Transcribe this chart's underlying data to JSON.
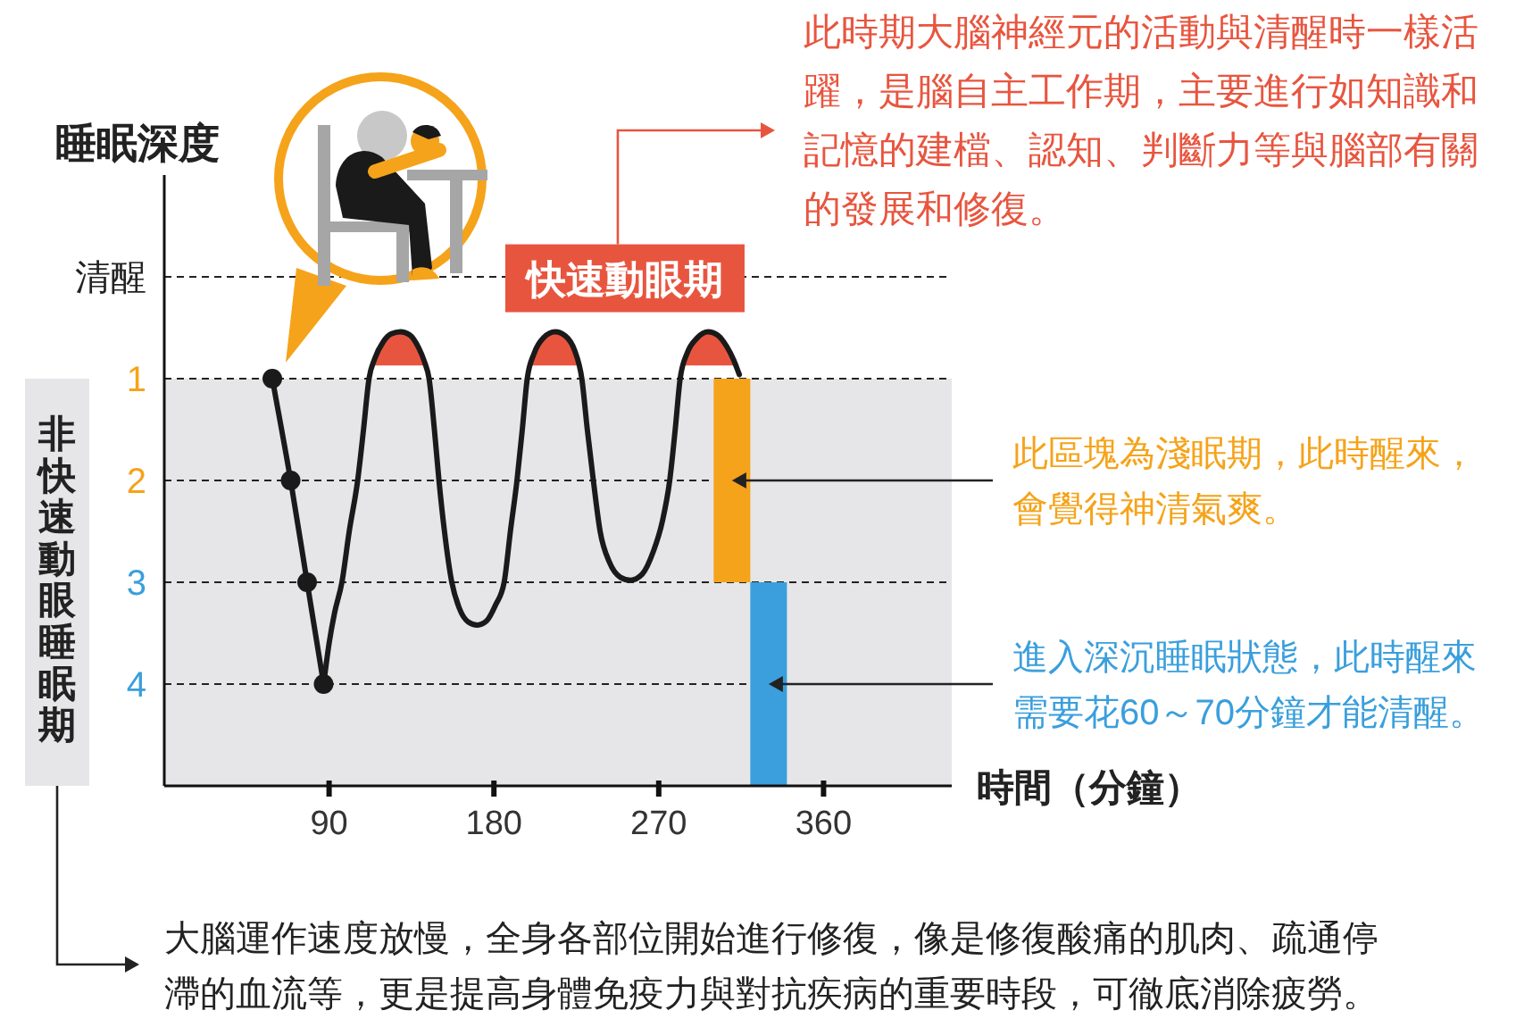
{
  "chart_data": {
    "type": "line",
    "xlabel": "時間（分鐘）",
    "ylabel": "睡眠深度",
    "xlim": [
      0,
      430
    ],
    "xticks": [
      90,
      180,
      270,
      360
    ],
    "ylim": [
      5,
      -1
    ],
    "yticks": [
      {
        "value": 0,
        "label": "清醒"
      },
      1,
      2,
      3,
      4
    ],
    "grid": "y",
    "bands": [
      {
        "axis": "y",
        "from": 1,
        "to": 5,
        "label": "非快速動眼睡眠期",
        "color": "#e6e6e8"
      }
    ],
    "series": [
      {
        "type": "area",
        "color": "#e8553f",
        "x": [
          113.9,
          115,
          119.5,
          124,
          129,
          134,
          139,
          142,
          142.6
        ],
        "values": [
          0.87,
          0.8,
          0.64,
          0.56,
          0.54,
          0.57,
          0.7,
          0.83,
          0.87
        ]
      },
      {
        "type": "area",
        "color": "#e8553f",
        "x": [
          200.2,
          202,
          207,
          213.5,
          219,
          224,
          226.1
        ],
        "values": [
          0.87,
          0.75,
          0.6,
          0.54,
          0.58,
          0.72,
          0.87
        ]
      },
      {
        "type": "area",
        "name": "快速動眼期",
        "color": "#e8553f",
        "x": [
          283.7,
          285.5,
          291,
          297,
          302,
          307,
          311,
          312
        ],
        "values": [
          0.87,
          0.75,
          0.6,
          0.54,
          0.57,
          0.68,
          0.82,
          0.87
        ]
      },
      {
        "color": "#1a1a1a",
        "marker": "circle",
        "x": [
          59,
          69,
          78,
          87
        ],
        "values": [
          1,
          2,
          3,
          4
        ]
      },
      {
        "color": "#1a1a1a",
        "x": [
          87,
          90,
          93,
          97,
          101,
          105.6,
          108.8,
          111.8,
          115,
          119.5,
          124,
          129,
          134,
          139,
          142,
          144.6,
          147.5,
          150,
          153,
          157,
          161,
          166,
          171,
          176,
          181,
          185.6,
          189,
          192.6,
          195.5,
          198.2,
          202,
          207,
          213.5,
          219,
          224,
          228,
          231,
          234.3,
          238,
          243,
          249,
          254.6,
          261,
          267,
          272,
          276,
          279,
          281.7,
          285.5,
          291,
          297,
          302,
          307,
          311,
          314
        ],
        "values": [
          4,
          3.6,
          3.3,
          3.0,
          2.5,
          2.0,
          1.5,
          1.0,
          0.8,
          0.64,
          0.56,
          0.54,
          0.57,
          0.7,
          0.83,
          1.0,
          1.5,
          2.0,
          2.5,
          3.0,
          3.25,
          3.39,
          3.42,
          3.38,
          3.22,
          3.0,
          2.5,
          2.0,
          1.5,
          1.0,
          0.75,
          0.6,
          0.54,
          0.58,
          0.72,
          1.0,
          1.5,
          2.0,
          2.5,
          2.8,
          2.95,
          2.98,
          2.92,
          2.7,
          2.4,
          2.0,
          1.5,
          1.0,
          0.75,
          0.6,
          0.54,
          0.57,
          0.68,
          0.82,
          0.96
        ]
      },
      {
        "type": "bar",
        "color": "#f5a31a",
        "x": [
          310
        ],
        "values": [
          2
        ],
        "base": [
          1
        ]
      },
      {
        "type": "bar",
        "color": "#3a9fdc",
        "x": [
          330
        ],
        "values": [
          2
        ],
        "base": [
          3
        ]
      }
    ],
    "annotations": [
      "此時期大腦神經元的活動與清醒時一樣活躍，是腦自主工作期，主要進行如知識和記憶的建檔、認知、判斷力等與腦部有關的發展和修復。",
      "此區塊為淺眠期，此時醒來，會覺得神清氣爽。",
      "進入深沉睡眠狀態，此時醒來需要花60～70分鐘才能清醒。",
      "大腦運作速度放慢，全身各部位開始進行修復，像是修復酸痛的肌肉、疏通停滯的血流等，更是提高身體免疫力與對抗疾病的重要時段，可徹底消除疲勞。"
    ]
  }
}
